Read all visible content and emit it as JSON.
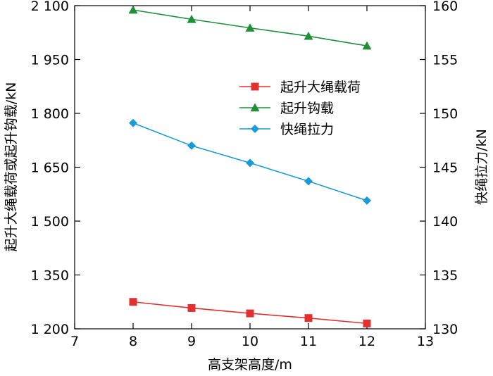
{
  "chart_data": {
    "type": "line",
    "title": "",
    "xlabel": "高支架高度/m",
    "ylabel_left": "起升大绳载荷或起升钩载/kN",
    "ylabel_right": "快绳拉力/kN",
    "xlim": [
      7,
      13
    ],
    "x_ticks": [
      7,
      8,
      9,
      10,
      11,
      12,
      13
    ],
    "x_tick_labels": [
      "7",
      "8",
      "9",
      "10",
      "11",
      "12",
      "13"
    ],
    "ylim_left": [
      1200,
      2100
    ],
    "y_left_ticks": [
      1200,
      1350,
      1500,
      1650,
      1800,
      1950,
      2100
    ],
    "y_left_tick_labels": [
      "1 200",
      "1 350",
      "1 500",
      "1 650",
      "1 800",
      "1 950",
      "2 100"
    ],
    "ylim_right": [
      130,
      160
    ],
    "y_right_ticks": [
      130,
      135,
      140,
      145,
      150,
      155,
      160
    ],
    "y_right_tick_labels": [
      "130",
      "135",
      "140",
      "145",
      "150",
      "155",
      "160"
    ],
    "grid": false,
    "legend_position": "top-right",
    "x": [
      8,
      9,
      10,
      11,
      12
    ],
    "series": [
      {
        "name": "起升大绳载荷",
        "axis": "left",
        "color": "#e03030",
        "marker": "square",
        "values": [
          1275,
          1258,
          1243,
          1230,
          1215
        ]
      },
      {
        "name": "起升钩载",
        "axis": "left",
        "color": "#1f8f3a",
        "marker": "triangle",
        "values": [
          2088,
          2062,
          2038,
          2015,
          1988
        ]
      },
      {
        "name": "快绳拉力",
        "axis": "right",
        "color": "#1a9ad6",
        "marker": "diamond",
        "values": [
          149.1,
          147.0,
          145.4,
          143.7,
          141.9
        ]
      }
    ]
  }
}
